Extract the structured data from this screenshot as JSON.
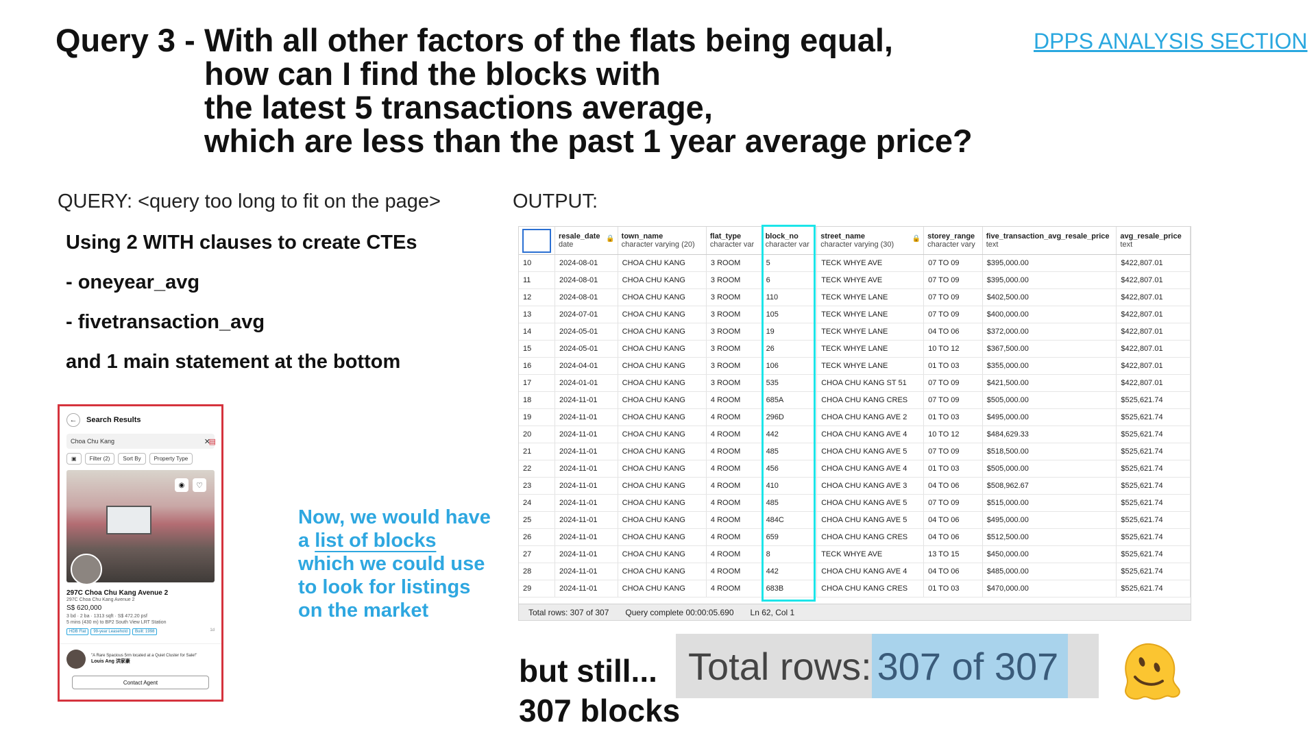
{
  "title": {
    "label": "Query 3 -",
    "lines": [
      "With all other factors of the flats being equal,",
      "how can I find the blocks with",
      "the latest 5 transactions average,",
      "which are less than the past 1 year average price?"
    ]
  },
  "nav_link": "DPPS ANALYSIS SECTION",
  "query_heading": "QUERY: <query too long to fit on the page>",
  "output_heading": "OUTPUT:",
  "notes": [
    "Using 2 WITH clauses to create CTEs",
    "- oneyear_avg",
    "- fivetransaction_avg",
    "and 1 main statement at the bottom"
  ],
  "phone": {
    "header": "Search Results",
    "search_value": "Choa Chu Kang",
    "filter_chips": [
      "Filter (2)",
      "Sort By",
      "Property Type"
    ],
    "listing_title": "297C Choa Chu Kang Avenue 2",
    "listing_address": "297C Choa Chu Kang Avenue 2",
    "listing_price": "S$ 620,000",
    "listing_specs": "3 bd · 2 ba · 1313 sqft · S$ 472.20 psf",
    "listing_distance": "5 mins (430 m) to BP2 South View LRT Station",
    "tags": [
      "HDB Flat",
      "99-year Leasehold",
      "Built: 1998"
    ],
    "listed_age": "1d",
    "agent_quote": "\"A Rare Spacious 5rm located at a Quiet Cluster for Sale!\"",
    "agent_name": "Louis Ang 洪家豪",
    "contact_button": "Contact Agent"
  },
  "blue_note": {
    "line1": "Now, we would have",
    "line2_prefix": "a ",
    "line2_link": "list of blocks",
    "line3": "which we could use",
    "line4": "to look for listings",
    "line5": "on the market"
  },
  "table": {
    "columns": [
      {
        "name": "resale_date",
        "type": "date",
        "locked": true
      },
      {
        "name": "town_name",
        "type": "character varying (20)",
        "locked": false
      },
      {
        "name": "flat_type",
        "type": "character var",
        "locked": false
      },
      {
        "name": "block_no",
        "type": "character var",
        "locked": false
      },
      {
        "name": "street_name",
        "type": "character varying (30)",
        "locked": true
      },
      {
        "name": "storey_range",
        "type": "character vary",
        "locked": false
      },
      {
        "name": "five_transaction_avg_resale_price",
        "type": "text",
        "locked": false
      },
      {
        "name": "avg_resale_price",
        "type": "text",
        "locked": false
      }
    ],
    "rows": [
      [
        "10",
        "2024-08-01",
        "CHOA CHU KANG",
        "3 ROOM",
        "5",
        "TECK WHYE AVE",
        "07 TO 09",
        "$395,000.00",
        "$422,807.01"
      ],
      [
        "11",
        "2024-08-01",
        "CHOA CHU KANG",
        "3 ROOM",
        "6",
        "TECK WHYE AVE",
        "07 TO 09",
        "$395,000.00",
        "$422,807.01"
      ],
      [
        "12",
        "2024-08-01",
        "CHOA CHU KANG",
        "3 ROOM",
        "110",
        "TECK WHYE LANE",
        "07 TO 09",
        "$402,500.00",
        "$422,807.01"
      ],
      [
        "13",
        "2024-07-01",
        "CHOA CHU KANG",
        "3 ROOM",
        "105",
        "TECK WHYE LANE",
        "07 TO 09",
        "$400,000.00",
        "$422,807.01"
      ],
      [
        "14",
        "2024-05-01",
        "CHOA CHU KANG",
        "3 ROOM",
        "19",
        "TECK WHYE LANE",
        "04 TO 06",
        "$372,000.00",
        "$422,807.01"
      ],
      [
        "15",
        "2024-05-01",
        "CHOA CHU KANG",
        "3 ROOM",
        "26",
        "TECK WHYE LANE",
        "10 TO 12",
        "$367,500.00",
        "$422,807.01"
      ],
      [
        "16",
        "2024-04-01",
        "CHOA CHU KANG",
        "3 ROOM",
        "106",
        "TECK WHYE LANE",
        "01 TO 03",
        "$355,000.00",
        "$422,807.01"
      ],
      [
        "17",
        "2024-01-01",
        "CHOA CHU KANG",
        "3 ROOM",
        "535",
        "CHOA CHU KANG ST 51",
        "07 TO 09",
        "$421,500.00",
        "$422,807.01"
      ],
      [
        "18",
        "2024-11-01",
        "CHOA CHU KANG",
        "4 ROOM",
        "685A",
        "CHOA CHU KANG CRES",
        "07 TO 09",
        "$505,000.00",
        "$525,621.74"
      ],
      [
        "19",
        "2024-11-01",
        "CHOA CHU KANG",
        "4 ROOM",
        "296D",
        "CHOA CHU KANG AVE 2",
        "01 TO 03",
        "$495,000.00",
        "$525,621.74"
      ],
      [
        "20",
        "2024-11-01",
        "CHOA CHU KANG",
        "4 ROOM",
        "442",
        "CHOA CHU KANG AVE 4",
        "10 TO 12",
        "$484,629.33",
        "$525,621.74"
      ],
      [
        "21",
        "2024-11-01",
        "CHOA CHU KANG",
        "4 ROOM",
        "485",
        "CHOA CHU KANG AVE 5",
        "07 TO 09",
        "$518,500.00",
        "$525,621.74"
      ],
      [
        "22",
        "2024-11-01",
        "CHOA CHU KANG",
        "4 ROOM",
        "456",
        "CHOA CHU KANG AVE 4",
        "01 TO 03",
        "$505,000.00",
        "$525,621.74"
      ],
      [
        "23",
        "2024-11-01",
        "CHOA CHU KANG",
        "4 ROOM",
        "410",
        "CHOA CHU KANG AVE 3",
        "04 TO 06",
        "$508,962.67",
        "$525,621.74"
      ],
      [
        "24",
        "2024-11-01",
        "CHOA CHU KANG",
        "4 ROOM",
        "485",
        "CHOA CHU KANG AVE 5",
        "07 TO 09",
        "$515,000.00",
        "$525,621.74"
      ],
      [
        "25",
        "2024-11-01",
        "CHOA CHU KANG",
        "4 ROOM",
        "484C",
        "CHOA CHU KANG AVE 5",
        "04 TO 06",
        "$495,000.00",
        "$525,621.74"
      ],
      [
        "26",
        "2024-11-01",
        "CHOA CHU KANG",
        "4 ROOM",
        "659",
        "CHOA CHU KANG CRES",
        "04 TO 06",
        "$512,500.00",
        "$525,621.74"
      ],
      [
        "27",
        "2024-11-01",
        "CHOA CHU KANG",
        "4 ROOM",
        "8",
        "TECK WHYE AVE",
        "13 TO 15",
        "$450,000.00",
        "$525,621.74"
      ],
      [
        "28",
        "2024-11-01",
        "CHOA CHU KANG",
        "4 ROOM",
        "442",
        "CHOA CHU KANG AVE 4",
        "04 TO 06",
        "$485,000.00",
        "$525,621.74"
      ],
      [
        "29",
        "2024-11-01",
        "CHOA CHU KANG",
        "4 ROOM",
        "683B",
        "CHOA CHU KANG CRES",
        "01 TO 03",
        "$470,000.00",
        "$525,621.74"
      ]
    ],
    "status": {
      "total_rows": "Total rows: 307 of 307",
      "query_time": "Query complete 00:00:05.690",
      "cursor": "Ln 62, Col 1"
    },
    "highlight_color": "#1ce5e9"
  },
  "still_text": [
    "but still...",
    "307 blocks"
  ],
  "zoom": {
    "label": "Total rows: ",
    "value": "307 of 307"
  },
  "emoji_icon": "melting-face-icon",
  "colors": {
    "accent_blue": "#29a7df",
    "phone_border": "#d5333d",
    "zoom_highlight": "#a9d3ec"
  }
}
